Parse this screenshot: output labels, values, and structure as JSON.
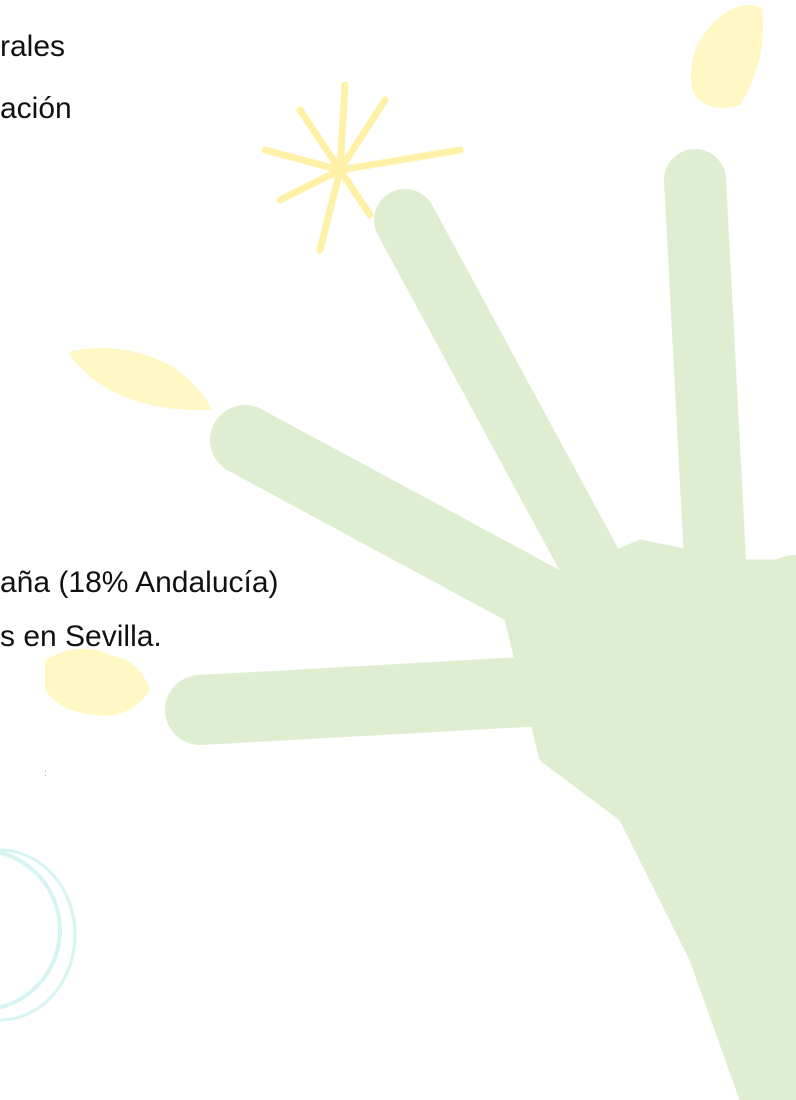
{
  "lines": [
    "rales",
    "ación",
    "aña (18% Andalucía)",
    "s en Sevilla."
  ],
  "mark": ":"
}
